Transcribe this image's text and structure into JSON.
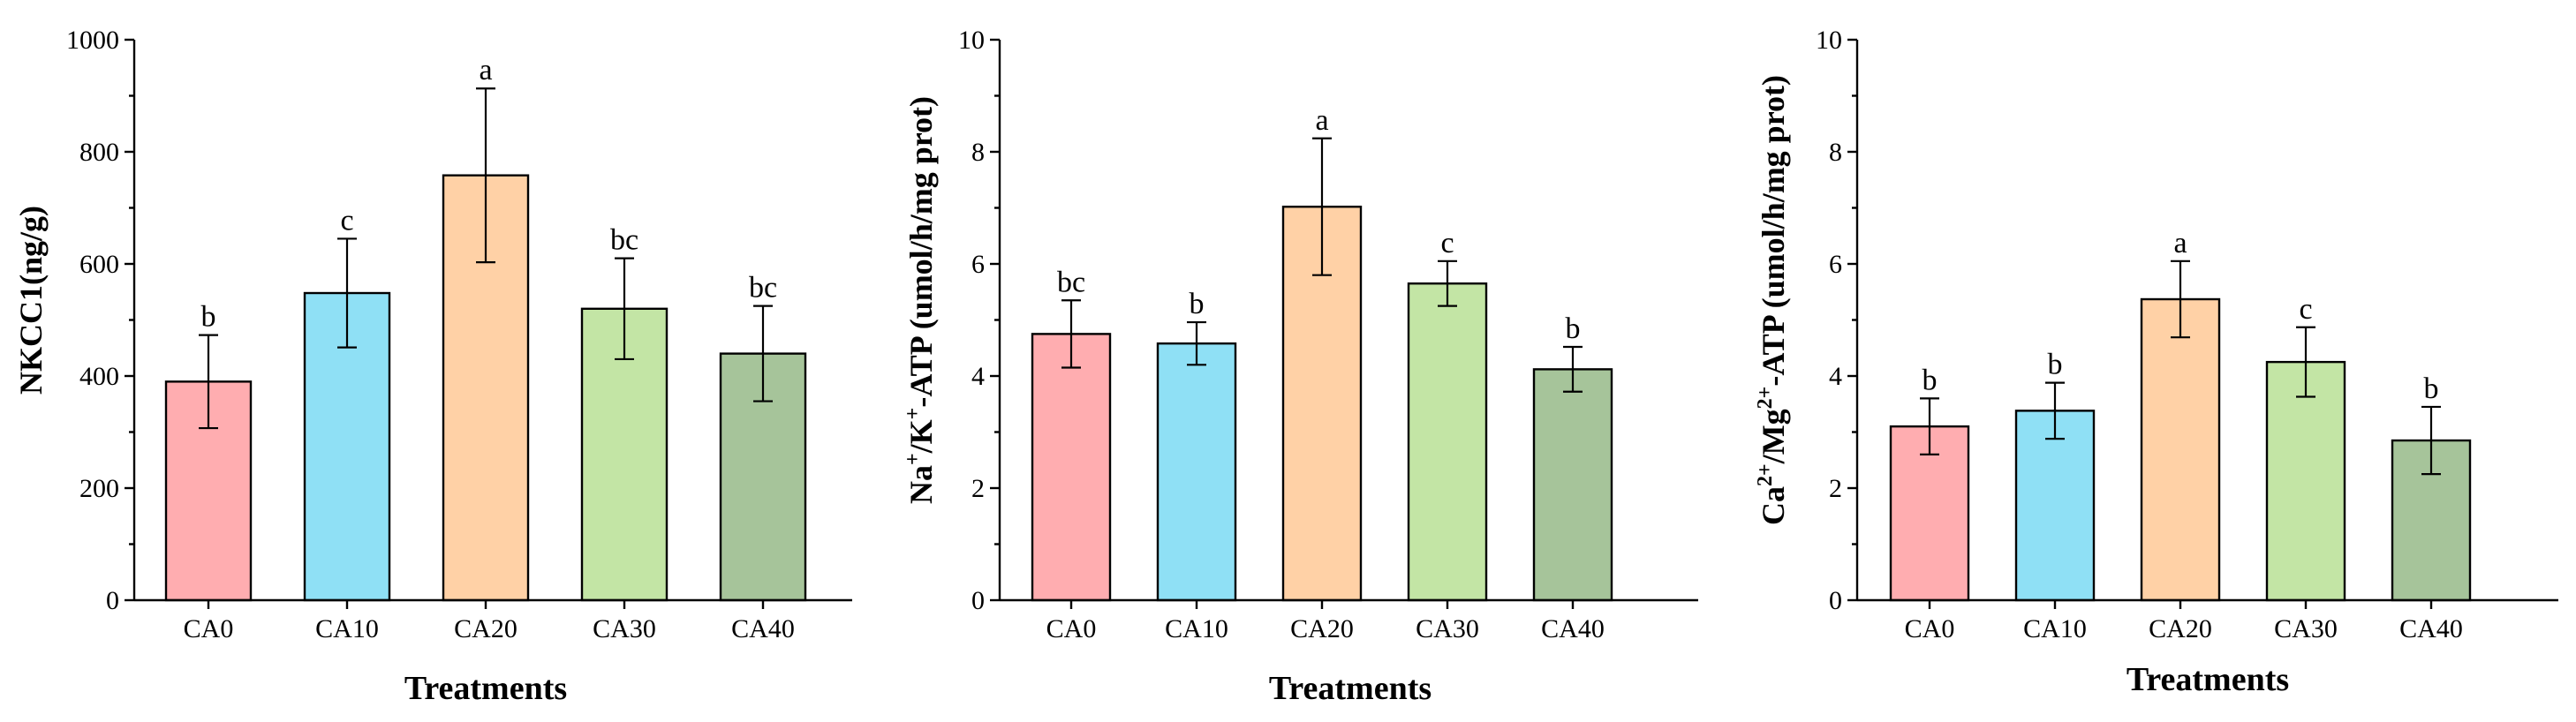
{
  "chart_data": [
    {
      "type": "bar",
      "categories": [
        "CA0",
        "CA10",
        "CA20",
        "CA30",
        "CA40"
      ],
      "values": [
        390,
        548,
        758,
        520,
        440
      ],
      "errors": [
        83,
        97,
        155,
        90,
        85
      ],
      "significance": [
        "b",
        "c",
        "a",
        "bc",
        "bc"
      ],
      "colors": [
        "#FFADB0",
        "#8FE0F5",
        "#FFD1A6",
        "#C3E5A5",
        "#A6C49A"
      ],
      "ylim": [
        0,
        1000
      ],
      "yticks": [
        0,
        200,
        400,
        600,
        800,
        1000
      ],
      "ylabel": "NKCC1(ng/g)",
      "xlabel": "Treatments"
    },
    {
      "type": "bar",
      "categories": [
        "CA0",
        "CA10",
        "CA20",
        "CA30",
        "CA40"
      ],
      "values": [
        4.75,
        4.58,
        7.02,
        5.65,
        4.12
      ],
      "errors": [
        0.6,
        0.38,
        1.22,
        0.4,
        0.4
      ],
      "significance": [
        "bc",
        "b",
        "a",
        "c",
        "b"
      ],
      "colors": [
        "#FFADB0",
        "#8FE0F5",
        "#FFD1A6",
        "#C3E5A5",
        "#A6C49A"
      ],
      "ylim": [
        0,
        10
      ],
      "yticks": [
        0,
        2,
        4,
        6,
        8,
        10
      ],
      "ylabel": "Na+/K+-ATP (umol/h/mg prot)",
      "ylabel_parts": [
        "Na",
        "+",
        "/K",
        "+",
        "-ATP (umol/h/mg prot)"
      ],
      "xlabel": "Treatments"
    },
    {
      "type": "bar",
      "categories": [
        "CA0",
        "CA10",
        "CA20",
        "CA30",
        "CA40"
      ],
      "values": [
        3.1,
        3.38,
        5.37,
        4.25,
        2.85
      ],
      "errors": [
        0.5,
        0.5,
        0.68,
        0.62,
        0.6
      ],
      "significance": [
        "b",
        "b",
        "a",
        "c",
        "b"
      ],
      "colors": [
        "#FFADB0",
        "#8FE0F5",
        "#FFD1A6",
        "#C3E5A5",
        "#A6C49A"
      ],
      "ylim": [
        0,
        10
      ],
      "yticks": [
        0,
        2,
        4,
        6,
        8,
        10
      ],
      "ylabel": "Ca2+/Mg2+-ATP (umol/h/mg prot)",
      "ylabel_parts": [
        "Ca",
        "2+",
        "/Mg",
        "2+",
        "-ATP (umol/h/mg prot)"
      ],
      "xlabel": "Treatments"
    }
  ]
}
